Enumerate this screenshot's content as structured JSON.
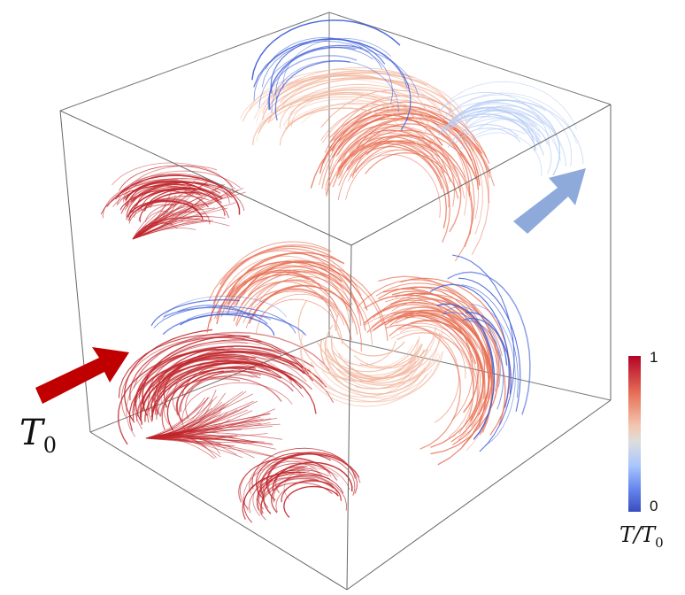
{
  "inlet_label": {
    "symbol": "T",
    "subscript": "0"
  },
  "colorbar": {
    "max_label": "1",
    "min_label": "0",
    "title_symbol": "T",
    "title_slash": "/",
    "title_denominator": "T",
    "title_subscript": "0",
    "colors": [
      "#b40426",
      "#e7745b",
      "#f3c7b1",
      "#dddddd",
      "#aac7fd",
      "#6788ee",
      "#3b4cc0"
    ]
  },
  "arrows": {
    "inlet_color": "#c00000",
    "outlet_color": "#8eaadb"
  },
  "streamline_palette": {
    "hot": "#c0262b",
    "warm": "#e87256",
    "mild": "#f2b8a0",
    "cool": "#b7cdf5",
    "cold": "#3f5fd8"
  }
}
